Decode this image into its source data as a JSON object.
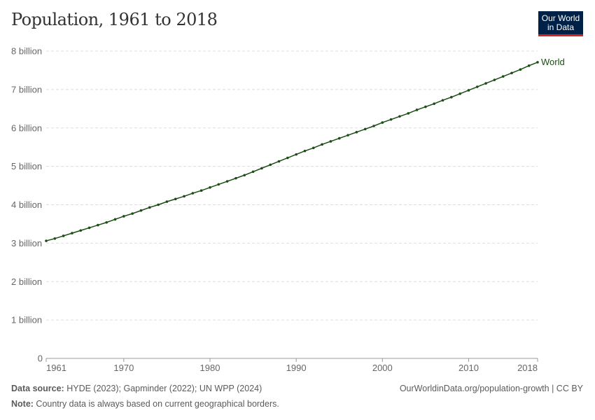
{
  "header": {
    "title": "Population, 1961 to 2018",
    "logo": "Our World in Data",
    "logo_line1": "Our World",
    "logo_line2": "in Data"
  },
  "colors": {
    "series": "#1b4d14",
    "logo_bg": "#002147",
    "logo_accent": "#ce261e",
    "grid": "#dddddd"
  },
  "chart_data": {
    "type": "line",
    "title": "Population, 1961 to 2018",
    "xlim": [
      1961,
      2018
    ],
    "ylim": [
      0,
      8000000000
    ],
    "x_ticks": [
      1961,
      1970,
      1980,
      1990,
      2000,
      2010,
      2018
    ],
    "y_ticks": [
      {
        "v": 0,
        "label": "0"
      },
      {
        "v": 1000000000,
        "label": "1 billion"
      },
      {
        "v": 2000000000,
        "label": "2 billion"
      },
      {
        "v": 3000000000,
        "label": "3 billion"
      },
      {
        "v": 4000000000,
        "label": "4 billion"
      },
      {
        "v": 5000000000,
        "label": "5 billion"
      },
      {
        "v": 6000000000,
        "label": "6 billion"
      },
      {
        "v": 7000000000,
        "label": "7 billion"
      },
      {
        "v": 8000000000,
        "label": "8 billion"
      }
    ],
    "grid": true,
    "series": [
      {
        "name": "World",
        "x": [
          1961,
          1962,
          1963,
          1964,
          1965,
          1966,
          1967,
          1968,
          1969,
          1970,
          1971,
          1972,
          1973,
          1974,
          1975,
          1976,
          1977,
          1978,
          1979,
          1980,
          1981,
          1982,
          1983,
          1984,
          1985,
          1986,
          1987,
          1988,
          1989,
          1990,
          1991,
          1992,
          1993,
          1994,
          1995,
          1996,
          1997,
          1998,
          1999,
          2000,
          2001,
          2002,
          2003,
          2004,
          2005,
          2006,
          2007,
          2008,
          2009,
          2010,
          2011,
          2012,
          2013,
          2014,
          2015,
          2016,
          2017,
          2018
        ],
        "values": [
          3.06,
          3.12,
          3.19,
          3.26,
          3.33,
          3.4,
          3.47,
          3.54,
          3.62,
          3.7,
          3.77,
          3.85,
          3.93,
          4.0,
          4.08,
          4.15,
          4.22,
          4.3,
          4.37,
          4.45,
          4.53,
          4.61,
          4.69,
          4.77,
          4.86,
          4.95,
          5.04,
          5.13,
          5.22,
          5.31,
          5.4,
          5.48,
          5.57,
          5.65,
          5.73,
          5.81,
          5.89,
          5.97,
          6.05,
          6.14,
          6.22,
          6.3,
          6.38,
          6.47,
          6.55,
          6.63,
          6.72,
          6.8,
          6.89,
          6.98,
          7.07,
          7.16,
          7.25,
          7.34,
          7.43,
          7.52,
          7.62,
          7.71
        ],
        "unit": "billion"
      }
    ]
  },
  "footer": {
    "source_label": "Data source:",
    "source": " HYDE (2023); Gapminder (2022); UN WPP (2024)",
    "url": "OurWorldinData.org/population-growth | CC BY",
    "note_label": "Note:",
    "note": " Country data is always based on current geographical borders."
  }
}
